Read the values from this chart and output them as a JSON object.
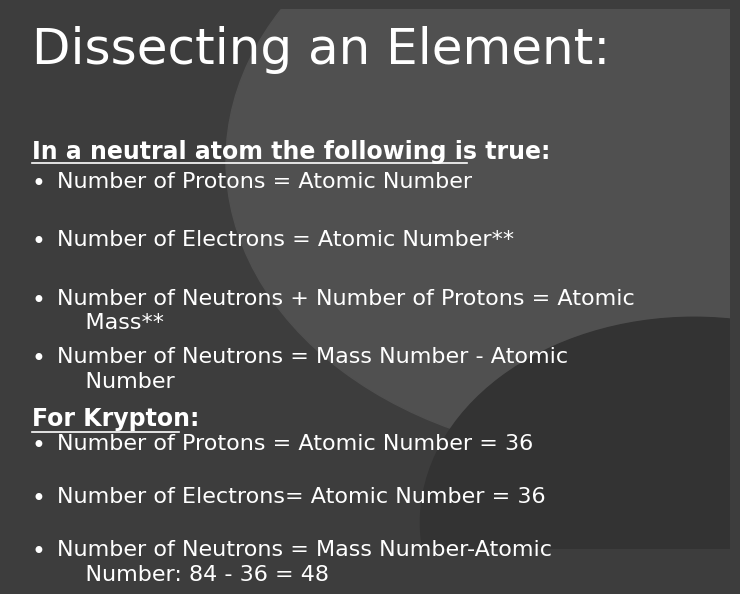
{
  "title": "Dissecting an Element:",
  "title_fontsize": 36,
  "title_color": "#ffffff",
  "bg_color_base": "#3d3d3d",
  "bg_circle1_color": "#505050",
  "bg_circle2_color": "#333333",
  "subtitle": "In a neutral atom the following is true:",
  "subtitle_fontsize": 17,
  "bullets1": [
    "Number of Protons = Atomic Number",
    "Number of Electrons = Atomic Number**",
    "Number of Neutrons + Number of Protons = Atomic\n    Mass**",
    "Number of Neutrons = Mass Number - Atomic\n    Number"
  ],
  "section2_header": "For Krypton:",
  "section2_fontsize": 17,
  "bullets2": [
    "Number of Protons = Atomic Number = 36",
    "Number of Electrons= Atomic Number = 36",
    "Number of Neutrons = Mass Number-Atomic\n    Number: 84 - 36 = 48"
  ],
  "bullet_fontsize": 16,
  "text_color": "#ffffff"
}
